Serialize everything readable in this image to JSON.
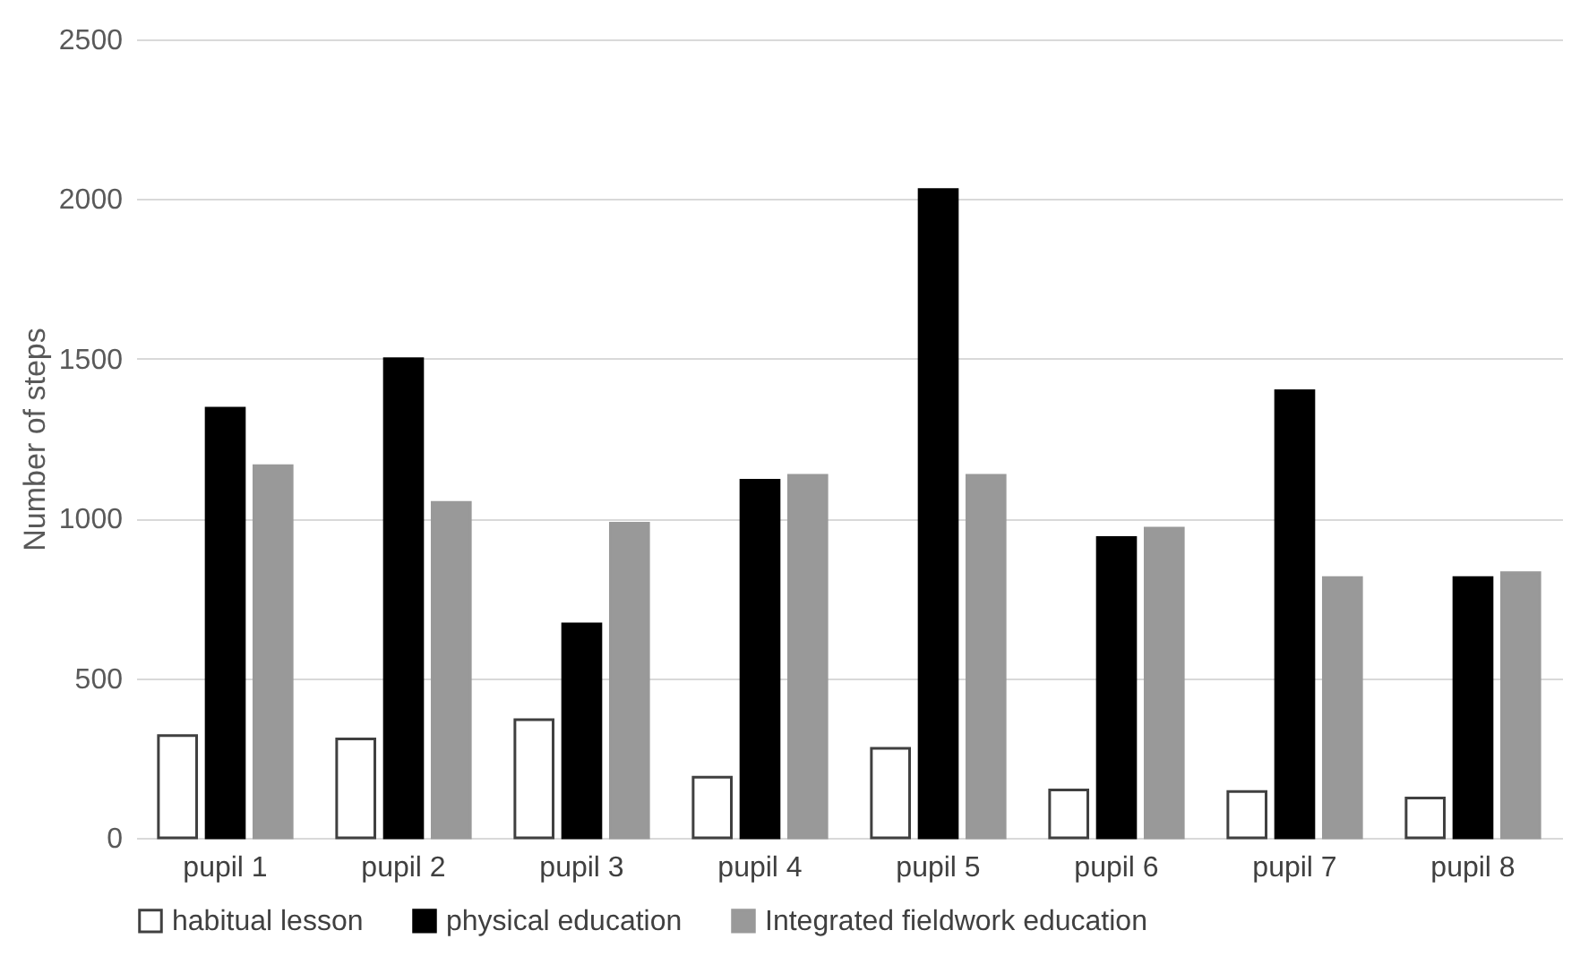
{
  "chart_data": {
    "type": "bar",
    "ylabel": "Number of steps",
    "categories": [
      "pupil 1",
      "pupil 2",
      "pupil 3",
      "pupil 4",
      "pupil 5",
      "pupil 6",
      "pupil 7",
      "pupil 8"
    ],
    "series": [
      {
        "name": "habitual lesson",
        "color": "#ffffff",
        "values": [
          320,
          310,
          370,
          190,
          280,
          150,
          145,
          125
        ]
      },
      {
        "name": "physical education",
        "color": "#000000",
        "values": [
          1345,
          1500,
          670,
          1120,
          2030,
          940,
          1400,
          815
        ]
      },
      {
        "name": "Integrated fieldwork education",
        "color": "#999999",
        "values": [
          1165,
          1050,
          985,
          1135,
          1135,
          970,
          815,
          830
        ]
      }
    ],
    "ylim": [
      0,
      2500
    ],
    "yticks": [
      0,
      500,
      1000,
      1500,
      2000,
      2500
    ],
    "grid": "y",
    "legend": "bottom"
  }
}
